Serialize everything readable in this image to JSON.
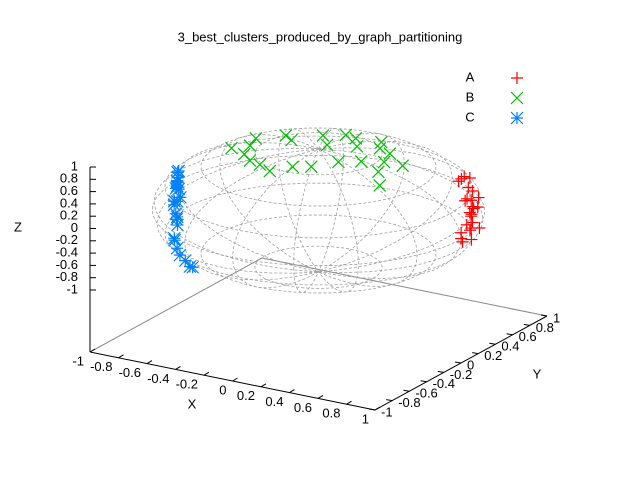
{
  "chart_data": {
    "type": "scatter3d",
    "title": "3_best_clusters_produced_by_graph_partitioning",
    "xlabel": "X",
    "ylabel": "Y",
    "zlabel": "Z",
    "xlim": [
      -1,
      1
    ],
    "ylim": [
      -1,
      1
    ],
    "zlim": [
      -1,
      1
    ],
    "xticks": [
      -1,
      -0.8,
      -0.6,
      -0.4,
      -0.2,
      0,
      0.2,
      0.4,
      0.6,
      0.8,
      1
    ],
    "yticks": [
      -1,
      -0.8,
      -0.6,
      -0.4,
      -0.2,
      0,
      0.2,
      0.4,
      0.6,
      0.8,
      1
    ],
    "zticks": [
      -1,
      -0.8,
      -0.6,
      -0.4,
      -0.2,
      0,
      0.2,
      0.4,
      0.6,
      0.8,
      1
    ],
    "legend": "top-right",
    "series": [
      {
        "name": "A",
        "color": "#ff0000",
        "marker": "plus",
        "x": [
          0.85,
          0.9,
          0.8,
          0.88,
          0.92,
          0.78,
          0.83,
          0.95,
          0.87,
          0.75,
          0.82,
          0.9,
          0.86,
          0.7,
          0.6,
          0.65,
          0.55,
          0.8,
          0.93,
          0.84,
          0.89,
          0.76,
          0.81,
          0.91,
          0.5
        ],
        "y": [
          0.35,
          0.3,
          0.45,
          0.2,
          0.25,
          0.5,
          0.4,
          0.15,
          0.42,
          0.55,
          0.3,
          0.38,
          0.28,
          0.6,
          0.7,
          0.65,
          0.75,
          0.35,
          0.22,
          0.46,
          0.33,
          0.52,
          0.4,
          0.27,
          0.8
        ],
        "z": [
          0.1,
          0.0,
          0.2,
          -0.1,
          0.15,
          0.05,
          -0.2,
          0.1,
          0.3,
          0.25,
          -0.3,
          -0.15,
          0.35,
          0.4,
          0.3,
          0.0,
          0.2,
          -0.4,
          -0.05,
          0.1,
          0.2,
          -0.1,
          0.45,
          -0.25,
          0.1
        ]
      },
      {
        "name": "B",
        "color": "#00c000",
        "marker": "cross",
        "x": [
          -0.4,
          -0.3,
          -0.2,
          -0.1,
          0,
          0.1,
          0.2,
          0.3,
          0.4,
          -0.5,
          -0.35,
          -0.15,
          0.05,
          0.25,
          0.45,
          -0.45,
          -0.25,
          0.15,
          0.35,
          0.5,
          -0.55,
          0.55,
          0.0,
          -0.05,
          0.2
        ],
        "y": [
          -0.2,
          -0.3,
          -0.35,
          -0.4,
          -0.3,
          -0.25,
          -0.1,
          0.0,
          0.1,
          0.1,
          0.2,
          0.3,
          0.35,
          0.3,
          -0.05,
          -0.05,
          0.1,
          0.2,
          0.25,
          0.15,
          -0.1,
          -0.2,
          0.1,
          0.4,
          0.4
        ],
        "z": [
          0.88,
          0.9,
          0.92,
          0.9,
          0.94,
          0.95,
          0.96,
          0.94,
          0.9,
          0.86,
          0.9,
          0.92,
          0.93,
          0.9,
          0.88,
          0.88,
          0.95,
          0.96,
          0.9,
          0.85,
          0.83,
          0.82,
          0.99,
          0.9,
          0.9
        ]
      },
      {
        "name": "C",
        "color": "#0080ff",
        "marker": "star",
        "x": [
          -0.75,
          -0.8,
          -0.7,
          -0.78,
          -0.72,
          -0.85,
          -0.68,
          -0.76,
          -0.82,
          -0.74,
          -0.7,
          -0.8,
          -0.77,
          -0.65,
          -0.6,
          -0.55,
          -0.5,
          -0.79,
          -0.73,
          -0.83,
          -0.71,
          -0.66,
          -0.45,
          -0.4,
          -0.74
        ],
        "y": [
          -0.4,
          -0.3,
          -0.5,
          -0.35,
          -0.45,
          -0.25,
          -0.55,
          -0.38,
          -0.32,
          -0.42,
          -0.48,
          -0.28,
          -0.36,
          -0.6,
          -0.65,
          -0.7,
          -0.72,
          -0.33,
          -0.44,
          -0.27,
          -0.5,
          -0.58,
          -0.75,
          -0.8,
          -0.4
        ],
        "z": [
          0.1,
          0.2,
          0.0,
          0.3,
          -0.1,
          0.15,
          0.25,
          0.4,
          -0.05,
          0.35,
          -0.2,
          0.05,
          0.45,
          -0.3,
          -0.4,
          -0.45,
          -0.5,
          0.5,
          -0.15,
          0.3,
          0.2,
          -0.35,
          -0.55,
          -0.5,
          0.6
        ]
      }
    ]
  }
}
